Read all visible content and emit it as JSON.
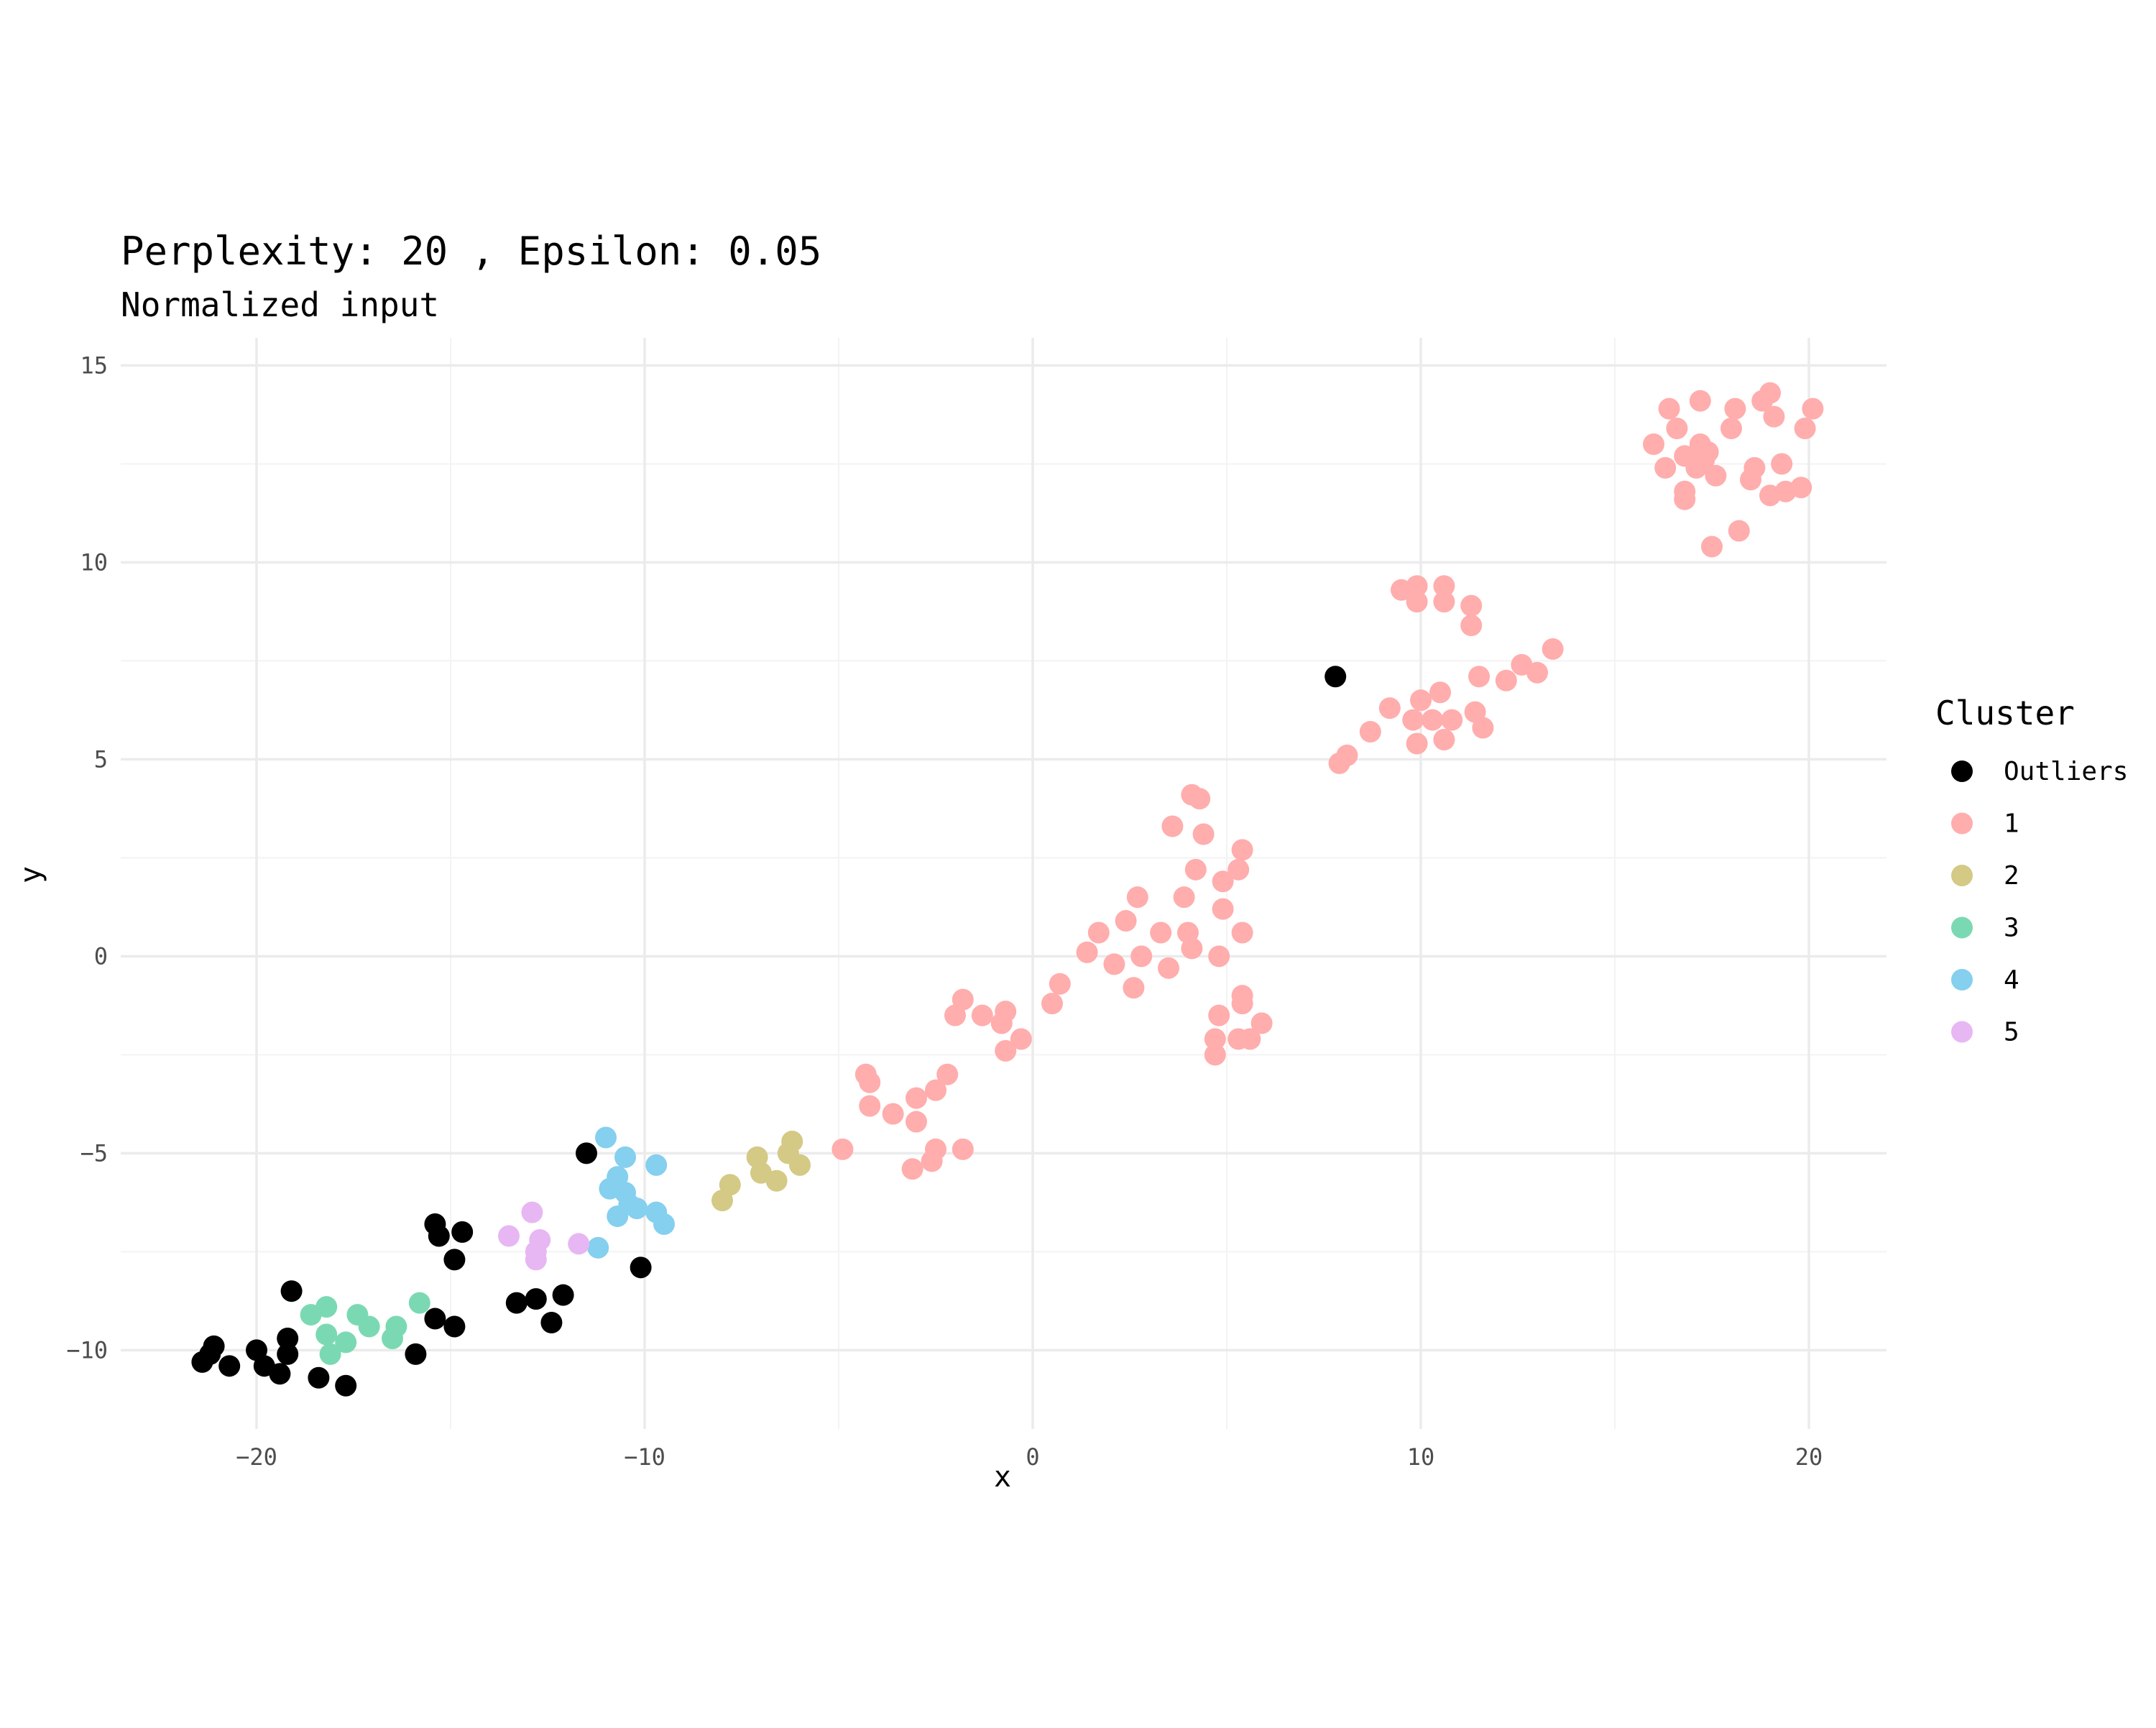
{
  "chart_data": {
    "type": "scatter",
    "title": "Perplexity: 20 , Epsilon: 0.05",
    "subtitle": "Normalized input",
    "xlabel": "x",
    "ylabel": "y",
    "xlim": [
      -23.5,
      22
    ],
    "ylim": [
      -12,
      15.7
    ],
    "xticks": [
      -20,
      -10,
      0,
      10,
      20
    ],
    "yticks": [
      -10,
      -5,
      0,
      5,
      10,
      15
    ],
    "grid": true,
    "legend": {
      "title": "Cluster",
      "position": "right"
    },
    "series": [
      {
        "name": "Outliers",
        "color": "#000000",
        "points": [
          [
            -21.4,
            -10.3
          ],
          [
            -21.2,
            -10.1
          ],
          [
            -21.1,
            -9.9
          ],
          [
            -20.7,
            -10.4
          ],
          [
            -20,
            -10
          ],
          [
            -19.8,
            -10.4
          ],
          [
            -19.4,
            -10.6
          ],
          [
            -19.2,
            -10.1
          ],
          [
            -19.2,
            -9.7
          ],
          [
            -19.1,
            -8.5
          ],
          [
            -18.4,
            -10.7
          ],
          [
            -17.7,
            -10.9
          ],
          [
            -15.9,
            -10.1
          ],
          [
            -15.4,
            -9.2
          ],
          [
            -15.4,
            -6.8
          ],
          [
            -15.3,
            -7.1
          ],
          [
            -14.9,
            -9.4
          ],
          [
            -14.9,
            -7.7
          ],
          [
            -14.7,
            -7
          ],
          [
            -13.3,
            -8.8
          ],
          [
            -12.8,
            -8.7
          ],
          [
            -12.4,
            -9.3
          ],
          [
            -12.1,
            -8.6
          ],
          [
            -11.5,
            -5
          ],
          [
            -10.1,
            -7.9
          ],
          [
            7.8,
            7.1
          ]
        ]
      },
      {
        "name": "1",
        "color": "#ffadad",
        "points": [
          [
            -4.9,
            -4.9
          ],
          [
            -4.3,
            -3
          ],
          [
            -4.2,
            -3.2
          ],
          [
            -4.2,
            -3.8
          ],
          [
            -3.6,
            -4
          ],
          [
            -3.1,
            -5.4
          ],
          [
            -3,
            -3.6
          ],
          [
            -3,
            -4.2
          ],
          [
            -2.6,
            -5.2
          ],
          [
            -2.5,
            -4.9
          ],
          [
            -2.5,
            -3.4
          ],
          [
            -2.2,
            -3
          ],
          [
            -2,
            -1.5
          ],
          [
            -1.8,
            -1.1
          ],
          [
            -1.8,
            -4.9
          ],
          [
            -1.3,
            -1.5
          ],
          [
            -0.8,
            -1.7
          ],
          [
            -0.7,
            -1.4
          ],
          [
            -0.7,
            -2.4
          ],
          [
            -0.3,
            -2.1
          ],
          [
            0.5,
            -1.2
          ],
          [
            0.7,
            -0.7
          ],
          [
            1.4,
            0.1
          ],
          [
            1.7,
            0.6
          ],
          [
            2.1,
            -0.2
          ],
          [
            2.4,
            0.9
          ],
          [
            2.6,
            -0.8
          ],
          [
            2.7,
            1.5
          ],
          [
            2.8,
            0
          ],
          [
            3.3,
            0.6
          ],
          [
            3.5,
            -0.3
          ],
          [
            3.6,
            3.3
          ],
          [
            3.9,
            1.5
          ],
          [
            4,
            0.6
          ],
          [
            4.1,
            0.2
          ],
          [
            4.1,
            4.1
          ],
          [
            4.2,
            2.2
          ],
          [
            4.3,
            4
          ],
          [
            4.4,
            3.1
          ],
          [
            4.7,
            -2.1
          ],
          [
            4.7,
            -2.5
          ],
          [
            4.8,
            -1.5
          ],
          [
            4.8,
            0
          ],
          [
            4.9,
            1.9
          ],
          [
            4.9,
            1.2
          ],
          [
            5.3,
            2.2
          ],
          [
            5.3,
            -2.1
          ],
          [
            5.4,
            2.7
          ],
          [
            5.4,
            0.6
          ],
          [
            5.4,
            -1
          ],
          [
            5.4,
            -1.2
          ],
          [
            5.6,
            -2.1
          ],
          [
            5.9,
            -1.7
          ],
          [
            7.9,
            4.9
          ],
          [
            8.1,
            5.1
          ],
          [
            8.7,
            5.7
          ],
          [
            9.2,
            6.3
          ],
          [
            9.5,
            9.3
          ],
          [
            9.8,
            6
          ],
          [
            9.9,
            9
          ],
          [
            9.9,
            9.4
          ],
          [
            9.9,
            5.4
          ],
          [
            10,
            6.5
          ],
          [
            10.3,
            6
          ],
          [
            10.5,
            6.7
          ],
          [
            10.6,
            9
          ],
          [
            10.6,
            9.4
          ],
          [
            10.6,
            5.5
          ],
          [
            10.8,
            6
          ],
          [
            11.3,
            8.4
          ],
          [
            11.3,
            8.9
          ],
          [
            11.4,
            6.2
          ],
          [
            11.5,
            7.1
          ],
          [
            11.6,
            5.8
          ],
          [
            12.2,
            7
          ],
          [
            12.6,
            7.4
          ],
          [
            13,
            7.2
          ],
          [
            13.4,
            7.8
          ],
          [
            16,
            13
          ],
          [
            16.3,
            12.4
          ],
          [
            16.4,
            13.9
          ],
          [
            16.6,
            13.4
          ],
          [
            16.8,
            12.7
          ],
          [
            16.8,
            11.8
          ],
          [
            16.8,
            11.6
          ],
          [
            17.1,
            12.4
          ],
          [
            17.2,
            13
          ],
          [
            17.2,
            14.1
          ],
          [
            17.3,
            12.6
          ],
          [
            17.4,
            12.8
          ],
          [
            17.5,
            10.4
          ],
          [
            17.6,
            12.2
          ],
          [
            18,
            13.4
          ],
          [
            18.1,
            13.9
          ],
          [
            18.2,
            10.8
          ],
          [
            18.5,
            12.1
          ],
          [
            18.6,
            12.4
          ],
          [
            18.8,
            14.1
          ],
          [
            19,
            14.3
          ],
          [
            19,
            11.7
          ],
          [
            19.1,
            13.7
          ],
          [
            19.3,
            12.5
          ],
          [
            19.4,
            11.8
          ],
          [
            19.8,
            11.9
          ],
          [
            19.9,
            13.4
          ],
          [
            20.1,
            13.9
          ]
        ]
      },
      {
        "name": "2",
        "color": "#d4c985",
        "points": [
          [
            -8,
            -6.2
          ],
          [
            -7.8,
            -5.8
          ],
          [
            -7.1,
            -5.1
          ],
          [
            -7,
            -5.5
          ],
          [
            -6.6,
            -5.7
          ],
          [
            -6.3,
            -5
          ],
          [
            -6.2,
            -4.7
          ],
          [
            -6,
            -5.3
          ]
        ]
      },
      {
        "name": "3",
        "color": "#7ad9b3",
        "points": [
          [
            -18.6,
            -9.1
          ],
          [
            -18.2,
            -9.6
          ],
          [
            -18.2,
            -8.9
          ],
          [
            -18.1,
            -10.1
          ],
          [
            -17.7,
            -9.8
          ],
          [
            -17.4,
            -9.1
          ],
          [
            -17.1,
            -9.4
          ],
          [
            -16.5,
            -9.7
          ],
          [
            -16.4,
            -9.4
          ],
          [
            -15.8,
            -8.8
          ]
        ]
      },
      {
        "name": "4",
        "color": "#85cfef",
        "points": [
          [
            -11.2,
            -7.4
          ],
          [
            -11,
            -4.6
          ],
          [
            -10.9,
            -5.9
          ],
          [
            -10.7,
            -6.6
          ],
          [
            -10.7,
            -5.6
          ],
          [
            -10.5,
            -6
          ],
          [
            -10.5,
            -5.1
          ],
          [
            -10.4,
            -6.3
          ],
          [
            -10.2,
            -6.4
          ],
          [
            -9.7,
            -6.5
          ],
          [
            -9.7,
            -5.3
          ],
          [
            -9.5,
            -6.8
          ]
        ]
      },
      {
        "name": "5",
        "color": "#e7b7f3",
        "points": [
          [
            -13.5,
            -7.1
          ],
          [
            -12.9,
            -6.5
          ],
          [
            -12.8,
            -7.5
          ],
          [
            -12.8,
            -7.7
          ],
          [
            -12.7,
            -7.2
          ],
          [
            -11.7,
            -7.3
          ]
        ]
      }
    ]
  }
}
